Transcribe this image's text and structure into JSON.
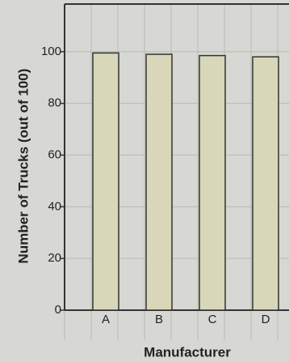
{
  "chart_data": {
    "type": "bar",
    "x_label": "Manufacturer",
    "y_label": "Number of Trucks (out of 100)",
    "categories": [
      "A",
      "B",
      "C",
      "D"
    ],
    "values": [
      99.5,
      99,
      98.5,
      98
    ],
    "color": "#d9d7b9",
    "ylim": [
      0,
      120
    ],
    "yticks": [
      0,
      20,
      40,
      60,
      80,
      100
    ],
    "grid": true
  }
}
